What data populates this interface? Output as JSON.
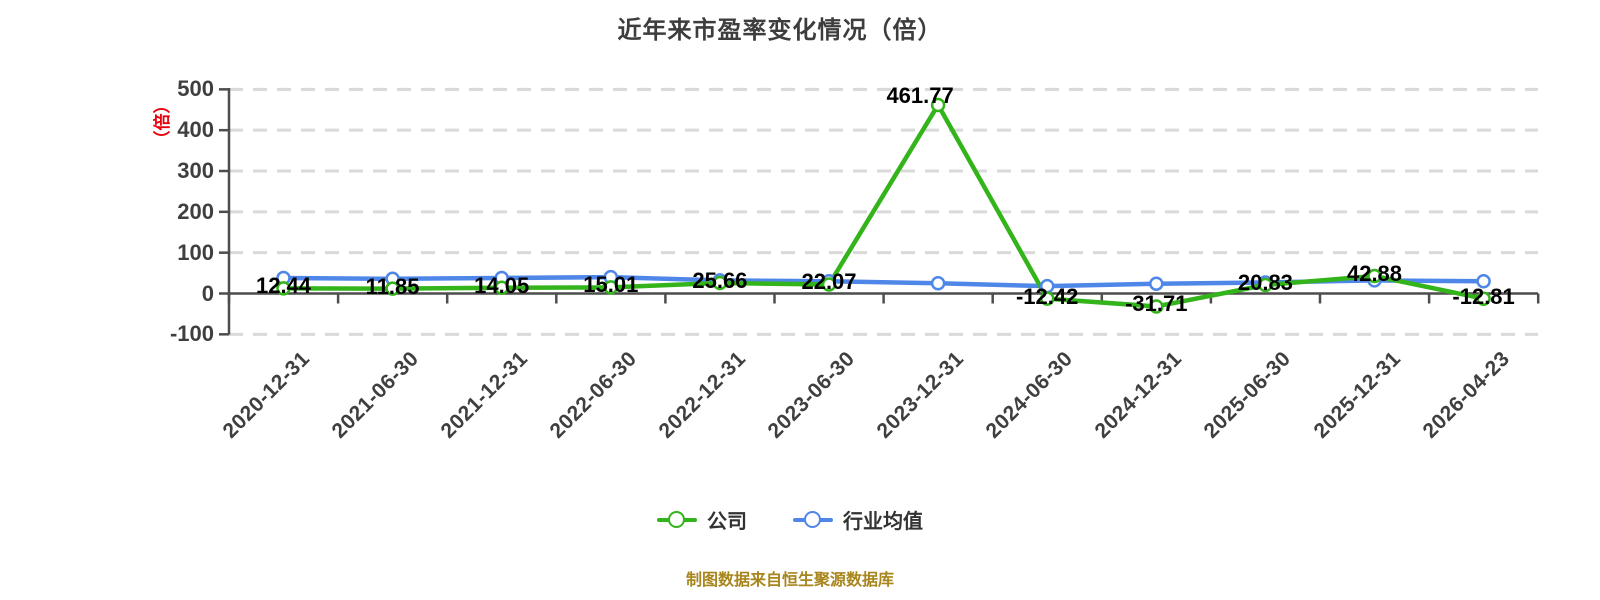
{
  "title": "近年来市盈率变化情况（倍）",
  "y_axis": {
    "unit_label": "（倍）",
    "tick_labels": [
      "500",
      "400",
      "300",
      "200",
      "100",
      "0",
      "-100"
    ],
    "tick_values": [
      500,
      400,
      300,
      200,
      100,
      0,
      -100
    ],
    "range": [
      -100,
      500
    ]
  },
  "chart_data": {
    "type": "line",
    "title": "近年来市盈率变化情况（倍）",
    "categories": [
      "2020-12-31",
      "2021-06-30",
      "2021-12-31",
      "2022-06-30",
      "2022-12-31",
      "2023-06-30",
      "2023-12-31",
      "2024-06-30",
      "2024-12-31",
      "2025-06-30",
      "2025-12-31",
      "2026-04-23"
    ],
    "series": [
      {
        "name": "公司",
        "color": "#33b41a",
        "values": [
          12.44,
          11.85,
          14.05,
          15.01,
          25.66,
          22.07,
          461.77,
          -12.42,
          -31.71,
          20.83,
          42.88,
          -12.81
        ],
        "point_labels_visible": true
      },
      {
        "name": "行业均值",
        "color": "#4f87e8",
        "values": [
          38,
          36,
          38,
          40,
          32,
          30,
          25,
          18,
          24,
          27,
          32,
          30
        ],
        "point_labels_visible": false,
        "values_estimated_from_pixels": true
      }
    ],
    "ylim": [
      -100,
      500
    ],
    "y_tick_step": 100,
    "grid": "dashed horizontal gridlines at each 100",
    "legend_position": "bottom"
  },
  "legend": {
    "items": [
      {
        "label": "公司",
        "color": "#33b41a"
      },
      {
        "label": "行业均值",
        "color": "#4f87e8"
      }
    ]
  },
  "footer": {
    "source_text": "制图数据来自恒生聚源数据库"
  },
  "colors": {
    "company_green": "#33b41a",
    "industry_blue": "#4f87e8",
    "grid": "#d9d9d9",
    "axis": "#4d4d4d",
    "unit_red": "#e8000d",
    "footer_gold": "#a8861d",
    "title_text": "#3d3d3d",
    "point_label": "#000000"
  }
}
